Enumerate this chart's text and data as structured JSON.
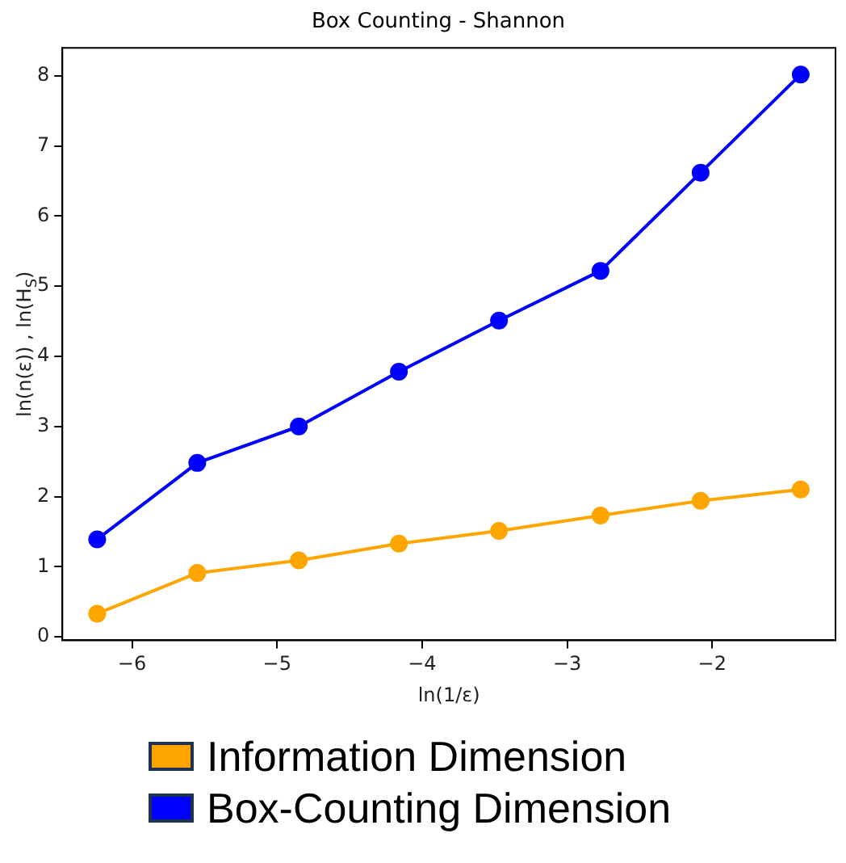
{
  "chart_data": {
    "type": "line",
    "title": "Box Counting - Shannon",
    "xlabel": "ln(1/ε)",
    "ylabel": "ln(n(ε)) , ln(H$_{S}$)",
    "x": [
      -6.24,
      -5.55,
      -4.85,
      -4.16,
      -3.47,
      -2.77,
      -2.08,
      -1.39
    ],
    "series": [
      {
        "name": "Information Dimension",
        "color": "#ffa500",
        "values": [
          0.33,
          0.91,
          1.09,
          1.33,
          1.51,
          1.73,
          1.94,
          2.1
        ]
      },
      {
        "name": "Box-Counting Dimension",
        "color": "#0000ff",
        "values": [
          1.39,
          2.48,
          3.0,
          3.78,
          4.51,
          5.22,
          6.62,
          8.02
        ]
      }
    ],
    "xlim": [
      -6.48,
      -1.15
    ],
    "xticks": [
      {
        "value": -6,
        "label": "−6"
      },
      {
        "value": -5,
        "label": "−5"
      },
      {
        "value": -4,
        "label": "−4"
      },
      {
        "value": -3,
        "label": "−3"
      },
      {
        "value": -2,
        "label": "−2"
      }
    ],
    "ylim": [
      -0.05,
      8.4
    ],
    "yticks": [
      0,
      1,
      2,
      3,
      4,
      5,
      6,
      7,
      8
    ],
    "grid": false,
    "legend": "bottom",
    "marker": "circle",
    "line_style": "solid"
  }
}
